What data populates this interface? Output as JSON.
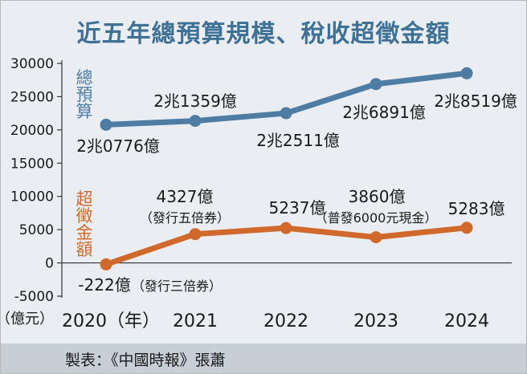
{
  "title": "近五年總預算規模、稅收超徵金額",
  "credit": "製表：《中國時報》張蕭",
  "chart_data": {
    "type": "line",
    "x": [
      2020,
      2021,
      2022,
      2023,
      2024
    ],
    "x_tick_labels": [
      "2020（年）",
      "2021",
      "2022",
      "2023",
      "2024"
    ],
    "y_tick_labels": [
      "30000",
      "25000",
      "20000",
      "15000",
      "10000",
      "5000",
      "0",
      "-5000",
      "（億元）"
    ],
    "ylim": [
      -5000,
      30000
    ],
    "y_ticks": [
      30000,
      25000,
      20000,
      15000,
      10000,
      5000,
      0,
      -5000
    ],
    "grid": false,
    "series": [
      {
        "name": "總預算",
        "color": "#4f7ca3",
        "values": [
          20776,
          21359,
          22511,
          26891,
          28519
        ],
        "labels": [
          "2兆0776億",
          "2兆1359億",
          "2兆2511億",
          "2兆6891億",
          "2兆8519億"
        ],
        "notes": [
          "",
          "",
          "",
          "",
          ""
        ]
      },
      {
        "name": "超徵金額",
        "color": "#d2692c",
        "values": [
          -222,
          4327,
          5237,
          3860,
          5283
        ],
        "labels": [
          "-222億",
          "4327億",
          "5237億",
          "3860億",
          "5283億"
        ],
        "notes": [
          "（發行三倍券）",
          "（發行五倍券）",
          "",
          "（普發6000元現金）",
          ""
        ]
      }
    ]
  }
}
